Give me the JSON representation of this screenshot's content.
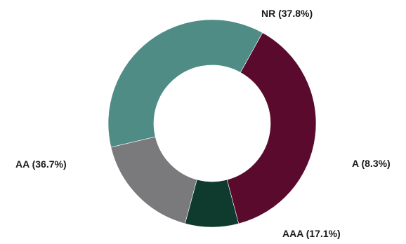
{
  "chart_data": {
    "type": "pie",
    "donut": true,
    "slices": [
      {
        "name": "NR",
        "value": 37.8,
        "label": "NR (37.8%)",
        "color": "#5a0a2c"
      },
      {
        "name": "A",
        "value": 8.3,
        "label": "A (8.3%)",
        "color": "#0f3a2e"
      },
      {
        "name": "AAA",
        "value": 17.1,
        "label": "AAA (17.1%)",
        "color": "#7a7a7d"
      },
      {
        "name": "AA",
        "value": 36.7,
        "label": "AA (36.7%)",
        "color": "#4f8c86"
      }
    ],
    "start_angle_deg": -61,
    "direction": "clockwise",
    "legend": "none",
    "title": ""
  }
}
